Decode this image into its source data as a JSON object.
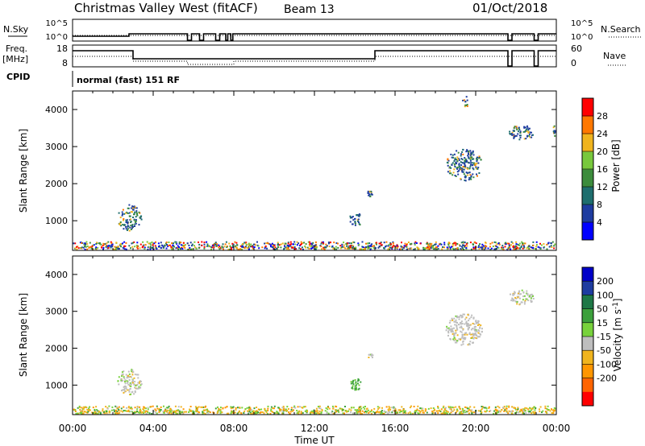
{
  "header": {
    "station": "Christmas Valley West (fitACF)",
    "beam": "Beam 13",
    "date": "01/Oct/2018"
  },
  "panel_labels": {
    "nsky": "N.Sky",
    "nsearch": "N.Search",
    "freq_line1": "Freq.",
    "freq_line2": "[MHz]",
    "nave": "Nave",
    "cpid": "CPID",
    "cpid_value": "normal (fast) 151 RF",
    "nsky_ticks": [
      "10^5",
      "10^0"
    ],
    "nsearch_ticks": [
      "10^5",
      "10^0"
    ],
    "freq_ticks": [
      "18",
      "8"
    ],
    "nave_ticks": [
      "60",
      "0"
    ]
  },
  "colors": {
    "power": [
      "#0000ff",
      "#1e3ca0",
      "#1e6e6e",
      "#3c8c3c",
      "#78c83c",
      "#f0b41e",
      "#ff7800",
      "#ff0000"
    ],
    "velocity": [
      "#0000c8",
      "#1e3ca0",
      "#1e7846",
      "#3ca03c",
      "#78d23c",
      "#bebebe",
      "#f0b41e",
      "#ff9600",
      "#ff6400",
      "#ff0000"
    ]
  },
  "chart_data": [
    {
      "type": "heatmap",
      "xlabel": "",
      "ylabel": "Slant Range [km]",
      "xlim": [
        "00:00",
        "00:00"
      ],
      "ylim": [
        200,
        4500
      ],
      "yticks": [
        1000,
        2000,
        3000,
        4000
      ],
      "colorbar": {
        "label": "Power [dB]",
        "ticks": [
          4,
          8,
          12,
          16,
          20,
          24,
          28
        ],
        "range": [
          0,
          30
        ]
      },
      "scatter_regions": [
        {
          "t": [
            2.2,
            3.4
          ],
          "r": [
            750,
            1450
          ],
          "values": "8-24"
        },
        {
          "t": [
            13.7,
            14.3
          ],
          "r": [
            850,
            1250
          ],
          "values": "8-24"
        },
        {
          "t": [
            14.6,
            14.9
          ],
          "r": [
            1650,
            1900
          ],
          "values": "8-20"
        },
        {
          "t": [
            18.5,
            20.3
          ],
          "r": [
            2100,
            2950
          ],
          "values": "8-28"
        },
        {
          "t": [
            21.6,
            22.9
          ],
          "r": [
            3200,
            3600
          ],
          "values": "8-16"
        },
        {
          "t": [
            23.8,
            24.0
          ],
          "r": [
            3300,
            3800
          ],
          "values": "8-12"
        },
        {
          "t": [
            19.3,
            19.6
          ],
          "r": [
            4050,
            4400
          ],
          "values": "8-16"
        },
        {
          "t": [
            0.0,
            24.0
          ],
          "r": [
            200,
            450
          ],
          "values": "4-28"
        }
      ]
    },
    {
      "type": "heatmap",
      "xlabel": "Time UT",
      "ylabel": "Slant Range [km]",
      "xticks": [
        "00:00",
        "04:00",
        "08:00",
        "12:00",
        "16:00",
        "20:00",
        "00:00"
      ],
      "ylim": [
        200,
        4500
      ],
      "yticks": [
        1000,
        2000,
        3000,
        4000
      ],
      "colorbar": {
        "label": "Velocity [m s^-1]",
        "ticks": [
          200,
          100,
          50,
          15,
          -15,
          -50,
          -100,
          -200
        ]
      },
      "scatter_regions": [
        {
          "t": [
            2.2,
            3.4
          ],
          "r": [
            750,
            1450
          ],
          "values": "-15 to 50"
        },
        {
          "t": [
            13.7,
            14.3
          ],
          "r": [
            850,
            1250
          ],
          "values": "15 to 100"
        },
        {
          "t": [
            14.6,
            14.9
          ],
          "r": [
            1650,
            1900
          ],
          "values": "-50 to 15"
        },
        {
          "t": [
            18.5,
            20.3
          ],
          "r": [
            2100,
            2950
          ],
          "values": "-15 to 15"
        },
        {
          "t": [
            21.6,
            22.9
          ],
          "r": [
            3200,
            3600
          ],
          "values": "-15 to 15"
        },
        {
          "t": [
            0.0,
            24.0
          ],
          "r": [
            200,
            450
          ],
          "values": "-100 to 50"
        }
      ]
    }
  ]
}
